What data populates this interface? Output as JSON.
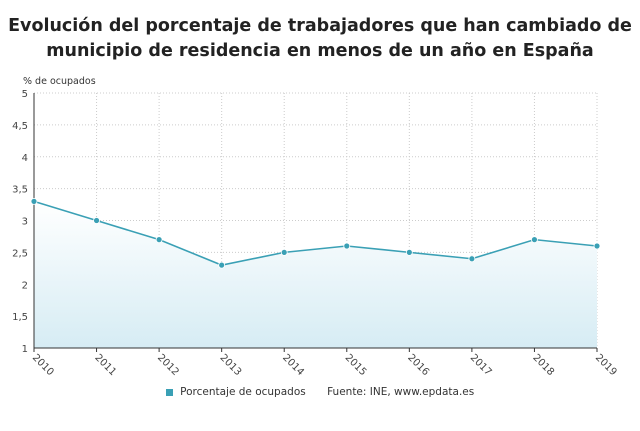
{
  "chart_data": {
    "type": "area",
    "title": "Evolución del porcentaje de trabajadores que han cambiado de municipio de residencia en menos de un año en España",
    "ylabel": "% de ocupados",
    "xlabel": "",
    "categories": [
      "2010",
      "2011",
      "2012",
      "2013",
      "2014",
      "2015",
      "2016",
      "2017",
      "2018",
      "2019"
    ],
    "series": [
      {
        "name": "Porcentaje de ocupados",
        "values": [
          3.3,
          3.0,
          2.7,
          2.3,
          2.5,
          2.6,
          2.5,
          2.4,
          2.7,
          2.6
        ]
      }
    ],
    "ylim": [
      1,
      5
    ],
    "yticks": [
      "1",
      "1,5",
      "2",
      "2,5",
      "3",
      "3,5",
      "4",
      "4,5",
      "5"
    ],
    "grid": true,
    "legend_position": "bottom",
    "source": "Fuente: INE, www.epdata.es",
    "color": "#3aa0b5"
  }
}
